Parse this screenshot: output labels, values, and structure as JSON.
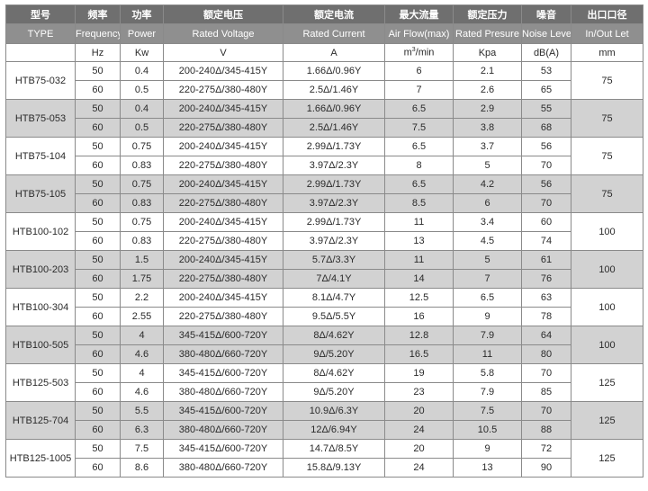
{
  "header_cn": [
    "型号",
    "频率",
    "功率",
    "额定电压",
    "额定电流",
    "最大流量",
    "额定压力",
    "噪音",
    "出口口径"
  ],
  "header_en": [
    "TYPE",
    "Frequency",
    "Power",
    "Rated Voltage",
    "Rated Current",
    "Air Flow(max)",
    "Rated Presure",
    "Noise Level",
    "In/Out Let"
  ],
  "units": {
    "freq": "Hz",
    "power": "Kw",
    "voltage": "V",
    "current": "A",
    "flow_base": "m",
    "flow_exp": "3",
    "flow_tail": "/min",
    "pressure": "Kpa",
    "noise": "dB(A)",
    "outlet": "mm"
  },
  "models": [
    {
      "name": "HTB75-032",
      "outlet": "75",
      "rows": [
        {
          "freq": "50",
          "power": "0.4",
          "voltage": "200-240Δ/345-415Y",
          "current": "1.66Δ/0.96Y",
          "flow": "6",
          "pressure": "2.1",
          "noise": "53"
        },
        {
          "freq": "60",
          "power": "0.5",
          "voltage": "220-275Δ/380-480Y",
          "current": "2.5Δ/1.46Y",
          "flow": "7",
          "pressure": "2.6",
          "noise": "65"
        }
      ]
    },
    {
      "name": "HTB75-053",
      "outlet": "75",
      "rows": [
        {
          "freq": "50",
          "power": "0.4",
          "voltage": "200-240Δ/345-415Y",
          "current": "1.66Δ/0.96Y",
          "flow": "6.5",
          "pressure": "2.9",
          "noise": "55"
        },
        {
          "freq": "60",
          "power": "0.5",
          "voltage": "220-275Δ/380-480Y",
          "current": "2.5Δ/1.46Y",
          "flow": "7.5",
          "pressure": "3.8",
          "noise": "68"
        }
      ]
    },
    {
      "name": "HTB75-104",
      "outlet": "75",
      "rows": [
        {
          "freq": "50",
          "power": "0.75",
          "voltage": "200-240Δ/345-415Y",
          "current": "2.99Δ/1.73Y",
          "flow": "6.5",
          "pressure": "3.7",
          "noise": "56"
        },
        {
          "freq": "60",
          "power": "0.83",
          "voltage": "220-275Δ/380-480Y",
          "current": "3.97Δ/2.3Y",
          "flow": "8",
          "pressure": "5",
          "noise": "70"
        }
      ]
    },
    {
      "name": "HTB75-105",
      "outlet": "75",
      "rows": [
        {
          "freq": "50",
          "power": "0.75",
          "voltage": "200-240Δ/345-415Y",
          "current": "2.99Δ/1.73Y",
          "flow": "6.5",
          "pressure": "4.2",
          "noise": "56"
        },
        {
          "freq": "60",
          "power": "0.83",
          "voltage": "220-275Δ/380-480Y",
          "current": "3.97Δ/2.3Y",
          "flow": "8.5",
          "pressure": "6",
          "noise": "70"
        }
      ]
    },
    {
      "name": "HTB100-102",
      "outlet": "100",
      "rows": [
        {
          "freq": "50",
          "power": "0.75",
          "voltage": "200-240Δ/345-415Y",
          "current": "2.99Δ/1.73Y",
          "flow": "11",
          "pressure": "3.4",
          "noise": "60"
        },
        {
          "freq": "60",
          "power": "0.83",
          "voltage": "220-275Δ/380-480Y",
          "current": "3.97Δ/2.3Y",
          "flow": "13",
          "pressure": "4.5",
          "noise": "74"
        }
      ]
    },
    {
      "name": "HTB100-203",
      "outlet": "100",
      "rows": [
        {
          "freq": "50",
          "power": "1.5",
          "voltage": "200-240Δ/345-415Y",
          "current": "5.7Δ/3.3Y",
          "flow": "11",
          "pressure": "5",
          "noise": "61"
        },
        {
          "freq": "60",
          "power": "1.75",
          "voltage": "220-275Δ/380-480Y",
          "current": "7Δ/4.1Y",
          "flow": "14",
          "pressure": "7",
          "noise": "76"
        }
      ]
    },
    {
      "name": "HTB100-304",
      "outlet": "100",
      "rows": [
        {
          "freq": "50",
          "power": "2.2",
          "voltage": "200-240Δ/345-415Y",
          "current": "8.1Δ/4.7Y",
          "flow": "12.5",
          "pressure": "6.5",
          "noise": "63"
        },
        {
          "freq": "60",
          "power": "2.55",
          "voltage": "220-275Δ/380-480Y",
          "current": "9.5Δ/5.5Y",
          "flow": "16",
          "pressure": "9",
          "noise": "78"
        }
      ]
    },
    {
      "name": "HTB100-505",
      "outlet": "100",
      "rows": [
        {
          "freq": "50",
          "power": "4",
          "voltage": "345-415Δ/600-720Y",
          "current": "8Δ/4.62Y",
          "flow": "12.8",
          "pressure": "7.9",
          "noise": "64"
        },
        {
          "freq": "60",
          "power": "4.6",
          "voltage": "380-480Δ/660-720Y",
          "current": "9Δ/5.20Y",
          "flow": "16.5",
          "pressure": "11",
          "noise": "80"
        }
      ]
    },
    {
      "name": "HTB125-503",
      "outlet": "125",
      "rows": [
        {
          "freq": "50",
          "power": "4",
          "voltage": "345-415Δ/600-720Y",
          "current": "8Δ/4.62Y",
          "flow": "19",
          "pressure": "5.8",
          "noise": "70"
        },
        {
          "freq": "60",
          "power": "4.6",
          "voltage": "380-480Δ/660-720Y",
          "current": "9Δ/5.20Y",
          "flow": "23",
          "pressure": "7.9",
          "noise": "85"
        }
      ]
    },
    {
      "name": "HTB125-704",
      "outlet": "125",
      "rows": [
        {
          "freq": "50",
          "power": "5.5",
          "voltage": "345-415Δ/600-720Y",
          "current": "10.9Δ/6.3Y",
          "flow": "20",
          "pressure": "7.5",
          "noise": "70"
        },
        {
          "freq": "60",
          "power": "6.3",
          "voltage": "380-480Δ/660-720Y",
          "current": "12Δ/6.94Y",
          "flow": "24",
          "pressure": "10.5",
          "noise": "88"
        }
      ]
    },
    {
      "name": "HTB125-1005",
      "outlet": "125",
      "rows": [
        {
          "freq": "50",
          "power": "7.5",
          "voltage": "345-415Δ/600-720Y",
          "current": "14.7Δ/8.5Y",
          "flow": "20",
          "pressure": "9",
          "noise": "72"
        },
        {
          "freq": "60",
          "power": "8.6",
          "voltage": "380-480Δ/660-720Y",
          "current": "15.8Δ/9.13Y",
          "flow": "24",
          "pressure": "13",
          "noise": "90"
        }
      ]
    }
  ]
}
